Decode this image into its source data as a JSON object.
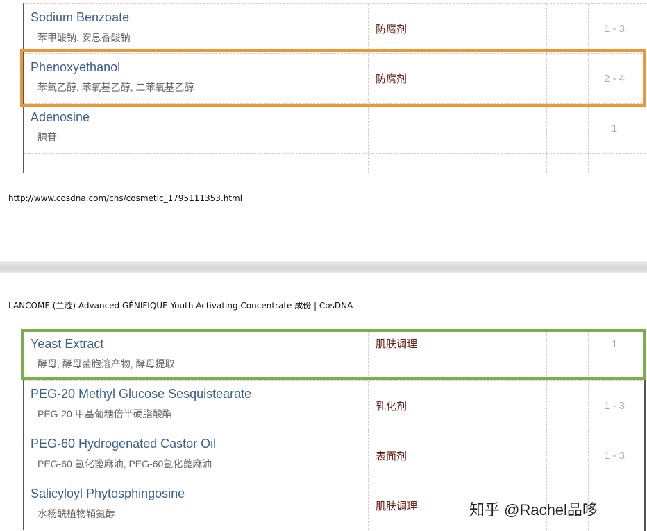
{
  "top_table": {
    "rows": [
      {
        "name": "Sodium Benzoate",
        "alias": "苯甲酸钠, 安息香酸钠",
        "function": "防腐剂",
        "score": "1 - 3"
      },
      {
        "name": "Phenoxyethanol",
        "alias": "苯氧乙醇, 苯氧基乙醇, 二苯氧基乙醇",
        "function": "防腐剂",
        "score": "2 - 4"
      },
      {
        "name": "Adenosine",
        "alias": "腺苷",
        "function": "",
        "score": "1"
      }
    ]
  },
  "url": "http://www.cosdna.com/chs/cosmetic_1795111353.html",
  "page_title": "LANCOME (兰蔻) Advanced GÉNIFIQUE Youth Activating Concentrate 成份 | CosDNA",
  "bottom_table": {
    "rows": [
      {
        "name": "Yeast Extract",
        "alias": "酵母, 酵母菌胞溶产物, 酵母提取",
        "function": "肌肤调理",
        "score": "1"
      },
      {
        "name": "PEG-20 Methyl Glucose Sesquistearate",
        "alias": "PEG-20 甲基葡糖倍半硬脂酸酯",
        "function": "乳化剂",
        "score": "1 - 3"
      },
      {
        "name": "PEG-60 Hydrogenated Castor Oil",
        "alias": "PEG-60 氢化篦麻油, PEG-60氢化蓖麻油",
        "function": "表面剂",
        "score": "1 - 3"
      },
      {
        "name": "Salicyloyl Phytosphingosine",
        "alias": "水杨酰植物鞘氨醇",
        "function": "肌肤调理",
        "score": ""
      }
    ]
  },
  "highlight_colors": {
    "orange": "#e8973a",
    "green": "#7ab04b"
  },
  "watermark": "知乎 @Rachel品哆"
}
